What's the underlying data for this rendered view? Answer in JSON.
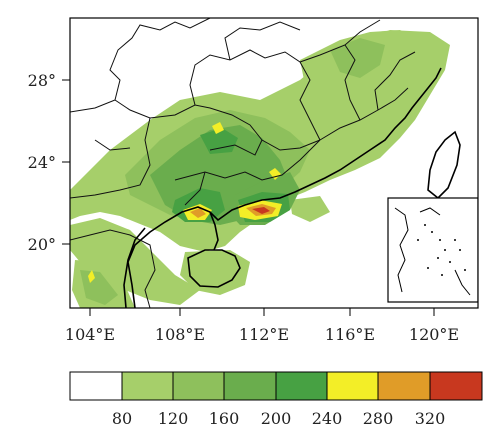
{
  "map": {
    "lat_ticks": [
      "28°",
      "24°",
      "20°"
    ],
    "lon_ticks": [
      "104°E",
      "108°E",
      "112°E",
      "116°E",
      "120°E"
    ]
  },
  "colorbar": {
    "colors": [
      "#ffffff",
      "#a6cf6a",
      "#8ec05c",
      "#6aad4d",
      "#47a143",
      "#f3ee27",
      "#e09c28",
      "#c8381f"
    ],
    "labels": [
      "80",
      "120",
      "160",
      "200",
      "240",
      "280",
      "320"
    ]
  }
}
